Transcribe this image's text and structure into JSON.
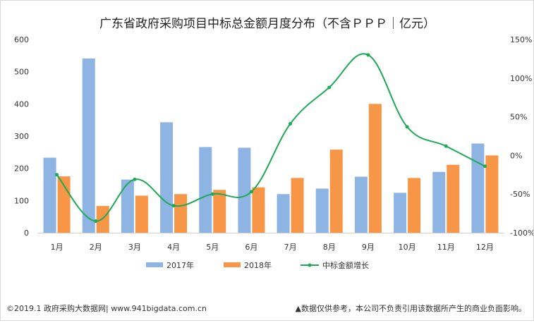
{
  "chart_data": {
    "type": "bar",
    "title": "广东省政府采购项目中标总金额月度分布（不含ＰＰＰ｜亿元）",
    "categories": [
      "1月",
      "2月",
      "3月",
      "4月",
      "5月",
      "6月",
      "7月",
      "8月",
      "9月",
      "10月",
      "11月",
      "12月"
    ],
    "series": [
      {
        "name": "2017年",
        "type": "bar",
        "axis": "left",
        "color": "#8eb4e3",
        "values": [
          233,
          541,
          165,
          343,
          266,
          264,
          120,
          137,
          174,
          124,
          189,
          277
        ]
      },
      {
        "name": "2018年",
        "type": "bar",
        "axis": "left",
        "color": "#f79646",
        "values": [
          175,
          83,
          115,
          120,
          133,
          141,
          170,
          258,
          400,
          170,
          211,
          240
        ]
      },
      {
        "name": "中标金额增长",
        "type": "line",
        "axis": "right",
        "color": "#1eaa54",
        "values": [
          -25,
          -85,
          -31,
          -65,
          -50,
          -47,
          41,
          88,
          130,
          37,
          12,
          -14
        ]
      }
    ],
    "ylim": [
      0,
      600
    ],
    "yticks": [
      "0",
      "100",
      "200",
      "300",
      "400",
      "500",
      "600"
    ],
    "y2lim": [
      -100,
      150
    ],
    "y2ticks": [
      "-100%",
      "-50%",
      "0%",
      "50%",
      "100%",
      "150%"
    ],
    "legend_position": "bottom",
    "grid": false
  },
  "footer": {
    "left": "©2019.1 政府采购大数据网| www.941bigdata.com.cn",
    "right": "▲数据仅供参考，本公司不负责引用该数据所产生的商业负面影响。"
  }
}
